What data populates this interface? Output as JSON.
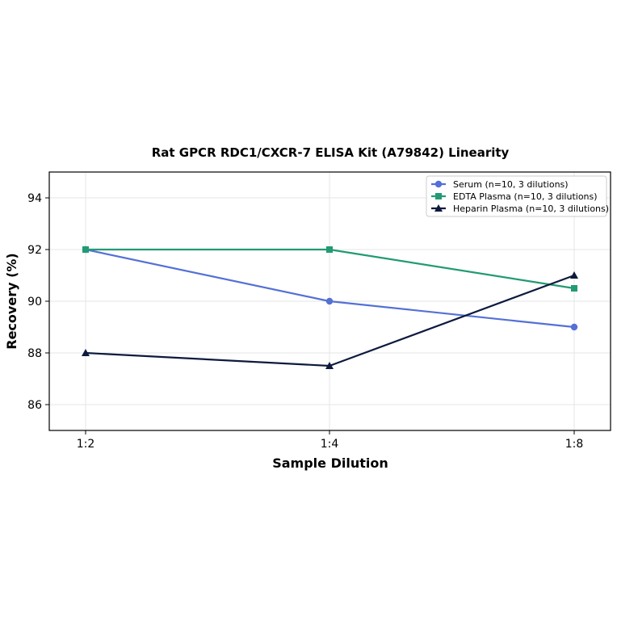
{
  "chart_data": {
    "type": "line",
    "title": "Rat GPCR RDC1/CXCR-7 ELISA Kit (A79842) Linearity",
    "xlabel": "Sample Dilution",
    "ylabel": "Recovery (%)",
    "categories": [
      "1:2",
      "1:4",
      "1:8"
    ],
    "ylim": [
      85,
      95
    ],
    "yticks": [
      86,
      88,
      90,
      92,
      94
    ],
    "grid": true,
    "legend_position": "top-right",
    "series": [
      {
        "name": "Serum (n=10, 3 dilutions)",
        "values": [
          92,
          90,
          89
        ],
        "color": "#5470d6",
        "marker": "circle"
      },
      {
        "name": "EDTA Plasma (n=10, 3 dilutions)",
        "values": [
          92,
          92,
          90.5
        ],
        "color": "#229a73",
        "marker": "square"
      },
      {
        "name": "Heparin Plasma (n=10, 3 dilutions)",
        "values": [
          88,
          87.5,
          91
        ],
        "color": "#0d1a3e",
        "marker": "triangle"
      }
    ]
  }
}
